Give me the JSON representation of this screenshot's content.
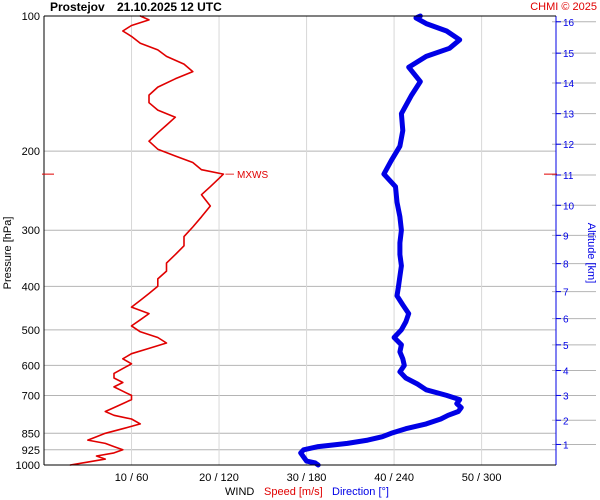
{
  "header": {
    "station": "Prostejov",
    "datetime": "21.10.2025 12 UTC",
    "credit": "CHMI © 2025"
  },
  "colors": {
    "speed": "#e00000",
    "direction": "#0000e6",
    "grid": "#b4b4b4",
    "text": "#000000"
  },
  "chart_data": {
    "type": "line",
    "title": "Prostejov   21.10.2025 12 UTC",
    "ylabel": "Pressure [hPa]",
    "y2label": "Altitude [km]",
    "xlabel_parts": {
      "main": "WIND",
      "speed": "Speed [m/s]",
      "direction": "Direction [°]"
    },
    "y_scale": "log",
    "ylim": [
      1000,
      100
    ],
    "y_ticks": [
      100,
      200,
      300,
      400,
      500,
      600,
      700,
      850,
      925,
      1000
    ],
    "y_tick_labels": [
      "100",
      "200",
      "300",
      "400",
      "500",
      "600",
      "700",
      "850",
      "925",
      "1000"
    ],
    "altitude_ticks": [
      1,
      2,
      3,
      4,
      5,
      6,
      7,
      8,
      9,
      10,
      11,
      12,
      13,
      14,
      15,
      16
    ],
    "altitude_tick_pressures": [
      900,
      795,
      700,
      616,
      540,
      472,
      411,
      356,
      308,
      264,
      226,
      193,
      165,
      141,
      121,
      103
    ],
    "x_ticks_speed": [
      10,
      20,
      30,
      40,
      50
    ],
    "x_ticks_direction": [
      60,
      120,
      180,
      240,
      300
    ],
    "x_tick_labels": [
      "10 / 60",
      "20 / 120",
      "30 / 180",
      "40 / 240",
      "50 / 300"
    ],
    "x_range_speed": [
      0,
      58.5
    ],
    "annotation": {
      "label": "MXWS",
      "pressure": 225
    },
    "grid": true,
    "series": [
      {
        "name": "Speed [m/s]",
        "color": "#e00000",
        "points": [
          [
            1000,
            3
          ],
          [
            985,
            5
          ],
          [
            970,
            7
          ],
          [
            955,
            6
          ],
          [
            940,
            8
          ],
          [
            925,
            9
          ],
          [
            910,
            8
          ],
          [
            895,
            7
          ],
          [
            880,
            5
          ],
          [
            865,
            6
          ],
          [
            850,
            7
          ],
          [
            830,
            9
          ],
          [
            810,
            11
          ],
          [
            790,
            10
          ],
          [
            775,
            8
          ],
          [
            760,
            7
          ],
          [
            745,
            8
          ],
          [
            730,
            9
          ],
          [
            715,
            10
          ],
          [
            700,
            10
          ],
          [
            685,
            9
          ],
          [
            670,
            8
          ],
          [
            655,
            9
          ],
          [
            640,
            8
          ],
          [
            625,
            8
          ],
          [
            610,
            9
          ],
          [
            595,
            10
          ],
          [
            580,
            9
          ],
          [
            565,
            10
          ],
          [
            550,
            12
          ],
          [
            535,
            14
          ],
          [
            520,
            13
          ],
          [
            505,
            11
          ],
          [
            490,
            10
          ],
          [
            475,
            11
          ],
          [
            460,
            12
          ],
          [
            445,
            10
          ],
          [
            430,
            11
          ],
          [
            415,
            12
          ],
          [
            400,
            13
          ],
          [
            385,
            13
          ],
          [
            370,
            14
          ],
          [
            355,
            14
          ],
          [
            340,
            15
          ],
          [
            325,
            16
          ],
          [
            310,
            16
          ],
          [
            295,
            17
          ],
          [
            280,
            18
          ],
          [
            265,
            19
          ],
          [
            250,
            18
          ],
          [
            240,
            19
          ],
          [
            230,
            20
          ],
          [
            225,
            20.5
          ],
          [
            220,
            18
          ],
          [
            212,
            17
          ],
          [
            205,
            15
          ],
          [
            198,
            13
          ],
          [
            190,
            12
          ],
          [
            182,
            13
          ],
          [
            175,
            14
          ],
          [
            168,
            15
          ],
          [
            162,
            13
          ],
          [
            156,
            12
          ],
          [
            150,
            12
          ],
          [
            144,
            13
          ],
          [
            138,
            15
          ],
          [
            133,
            17
          ],
          [
            128,
            16
          ],
          [
            123,
            14
          ],
          [
            119,
            13
          ],
          [
            115,
            11
          ],
          [
            111,
            10
          ],
          [
            108,
            9
          ],
          [
            105,
            10
          ],
          [
            102,
            12
          ],
          [
            100,
            11
          ]
        ]
      },
      {
        "name": "Direction [°]",
        "color": "#0000e6",
        "points": [
          [
            1000,
            188
          ],
          [
            990,
            186
          ],
          [
            980,
            180
          ],
          [
            960,
            178
          ],
          [
            940,
            176
          ],
          [
            925,
            178
          ],
          [
            910,
            188
          ],
          [
            895,
            208
          ],
          [
            880,
            222
          ],
          [
            865,
            232
          ],
          [
            850,
            238
          ],
          [
            830,
            248
          ],
          [
            810,
            262
          ],
          [
            790,
            272
          ],
          [
            775,
            277
          ],
          [
            760,
            284
          ],
          [
            745,
            286
          ],
          [
            730,
            283
          ],
          [
            715,
            285
          ],
          [
            700,
            276
          ],
          [
            680,
            262
          ],
          [
            660,
            256
          ],
          [
            640,
            248
          ],
          [
            620,
            244
          ],
          [
            600,
            247
          ],
          [
            580,
            246
          ],
          [
            560,
            244
          ],
          [
            540,
            245
          ],
          [
            520,
            240
          ],
          [
            500,
            245
          ],
          [
            480,
            248
          ],
          [
            460,
            250
          ],
          [
            440,
            246
          ],
          [
            420,
            242
          ],
          [
            400,
            243
          ],
          [
            380,
            244
          ],
          [
            360,
            245
          ],
          [
            340,
            244
          ],
          [
            320,
            244
          ],
          [
            300,
            245
          ],
          [
            280,
            244
          ],
          [
            260,
            242
          ],
          [
            240,
            241
          ],
          [
            225,
            233
          ],
          [
            210,
            238
          ],
          [
            195,
            244
          ],
          [
            180,
            246
          ],
          [
            165,
            245
          ],
          [
            150,
            252
          ],
          [
            140,
            258
          ],
          [
            130,
            250
          ],
          [
            123,
            262
          ],
          [
            118,
            278
          ],
          [
            113,
            285
          ],
          [
            108,
            276
          ],
          [
            104,
            262
          ],
          [
            101,
            255
          ],
          [
            100,
            258
          ]
        ]
      }
    ]
  }
}
